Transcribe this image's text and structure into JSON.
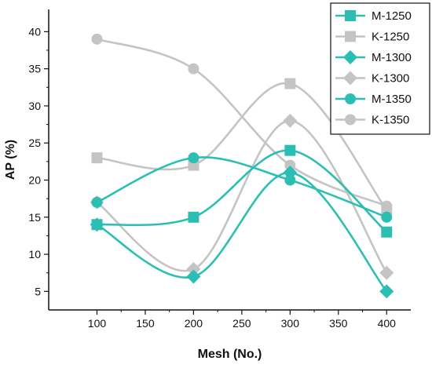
{
  "chart_data": {
    "type": "line",
    "xlabel": "Mesh (No.)",
    "ylabel": "AP (%)",
    "x": [
      100,
      200,
      300,
      400
    ],
    "xlim": [
      50,
      425
    ],
    "ylim": [
      2.5,
      43
    ],
    "xticks": [
      100,
      150,
      200,
      250,
      300,
      350,
      400
    ],
    "yticks": [
      5,
      10,
      15,
      20,
      25,
      30,
      35,
      40
    ],
    "smooth": true,
    "legend_position": "top-right",
    "series": [
      {
        "name": "M-1250",
        "values": [
          14,
          15,
          24,
          13
        ],
        "marker": "square",
        "color": "#2bbfb4"
      },
      {
        "name": "K-1250",
        "values": [
          23,
          22,
          33,
          16
        ],
        "marker": "square",
        "color": "#c4c4c4"
      },
      {
        "name": "M-1300",
        "values": [
          14,
          7,
          21,
          5
        ],
        "marker": "diamond",
        "color": "#2bbfb4"
      },
      {
        "name": "K-1300",
        "values": [
          17,
          8,
          28,
          7.5
        ],
        "marker": "diamond",
        "color": "#c4c4c4"
      },
      {
        "name": "M-1350",
        "values": [
          17,
          23,
          20,
          15
        ],
        "marker": "circle",
        "color": "#2bbfb4"
      },
      {
        "name": "K-1350",
        "values": [
          39,
          35,
          22,
          16.5
        ],
        "marker": "circle",
        "color": "#c4c4c4"
      }
    ]
  }
}
